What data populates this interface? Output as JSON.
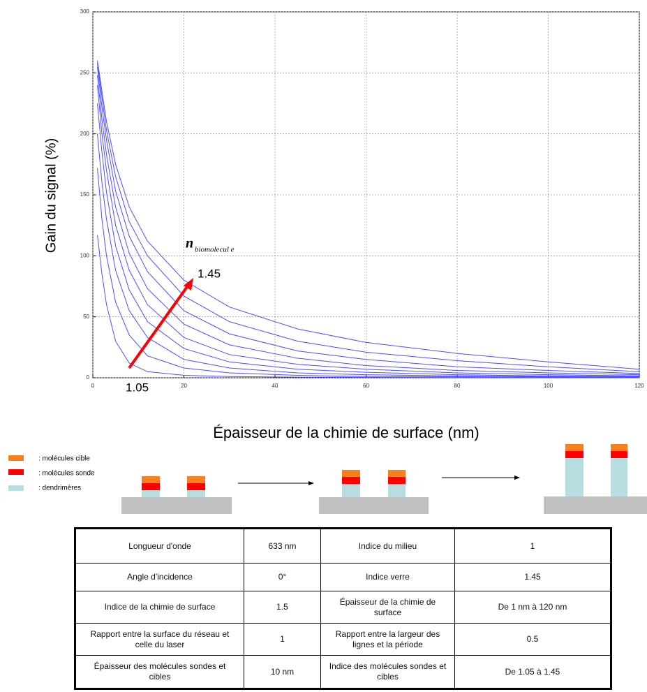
{
  "chart_data": {
    "type": "line",
    "y_label": "Gain du signal (%)",
    "x_label": "Épaisseur de la chimie de surface (nm)",
    "annotations": [
      "n",
      "biomolecul e",
      "1.45",
      "1.05"
    ],
    "x": [
      1,
      2,
      3,
      5,
      8,
      12,
      20,
      30,
      45,
      60,
      80,
      100,
      120
    ],
    "series": [
      {
        "color": "#4d4dff",
        "values": [
          117,
          85,
          60,
          30,
          12,
          5,
          2,
          1,
          0.5,
          0.3,
          0.2,
          0.1,
          0.1
        ]
      },
      {
        "color": "#4d4dff",
        "values": [
          172,
          130,
          100,
          62,
          35,
          18,
          8,
          4,
          2,
          1,
          0.8,
          0.5,
          0.3
        ]
      },
      {
        "color": "#4d4dff",
        "values": [
          200,
          160,
          130,
          88,
          55,
          33,
          15,
          8,
          4,
          2.5,
          1.5,
          1,
          0.7
        ]
      },
      {
        "color": "#4d4dff",
        "values": [
          225,
          185,
          152,
          108,
          72,
          46,
          24,
          13,
          7,
          4.5,
          2.5,
          1.5,
          1
        ]
      },
      {
        "color": "#4d4dff",
        "values": [
          240,
          200,
          170,
          125,
          88,
          60,
          33,
          19,
          11,
          7,
          4,
          2.5,
          1.5
        ]
      },
      {
        "color": "#4d4dff",
        "values": [
          248,
          212,
          183,
          140,
          102,
          73,
          44,
          27,
          16,
          10,
          6,
          4,
          2.5
        ]
      },
      {
        "color": "#4d4dff",
        "values": [
          255,
          222,
          195,
          153,
          116,
          87,
          55,
          36,
          22,
          15,
          9,
          6,
          3.5
        ]
      },
      {
        "color": "#4d4dff",
        "values": [
          258,
          230,
          203,
          165,
          128,
          100,
          67,
          46,
          30,
          21,
          14,
          9,
          5
        ]
      },
      {
        "color": "#4d4dff",
        "values": [
          260,
          235,
          210,
          175,
          140,
          112,
          80,
          58,
          40,
          29,
          20,
          13,
          7
        ]
      }
    ],
    "xlim": [
      0,
      120
    ],
    "xticks": [
      0,
      20,
      40,
      60,
      80,
      100,
      120
    ],
    "ylim": [
      0,
      300
    ],
    "yticks": [
      0,
      50,
      100,
      150,
      200,
      250,
      300
    ],
    "grid": true
  },
  "diagram": {
    "legend": [
      ": molécules cible",
      ": molécules sonde",
      ": dendrimères"
    ]
  },
  "table": {
    "rows": [
      [
        "Longueur d'onde",
        "633 nm",
        "Indice du milieu",
        "1"
      ],
      [
        "Angle d'incidence",
        "0°",
        "Indice verre",
        "1.45"
      ],
      [
        "Indice de la chimie de surface",
        "1.5",
        "Épaisseur de la chimie de surface",
        "De 1 nm à 120 nm"
      ],
      [
        "Rapport entre la surface du réseau et celle du laser",
        "1",
        "Rapport entre la largeur des lignes et la période",
        "0.5"
      ],
      [
        "Épaisseur des molécules sondes et cibles",
        "10 nm",
        "Indice des molécules sondes et cibles",
        "De 1.05 à 1.45"
      ]
    ]
  }
}
